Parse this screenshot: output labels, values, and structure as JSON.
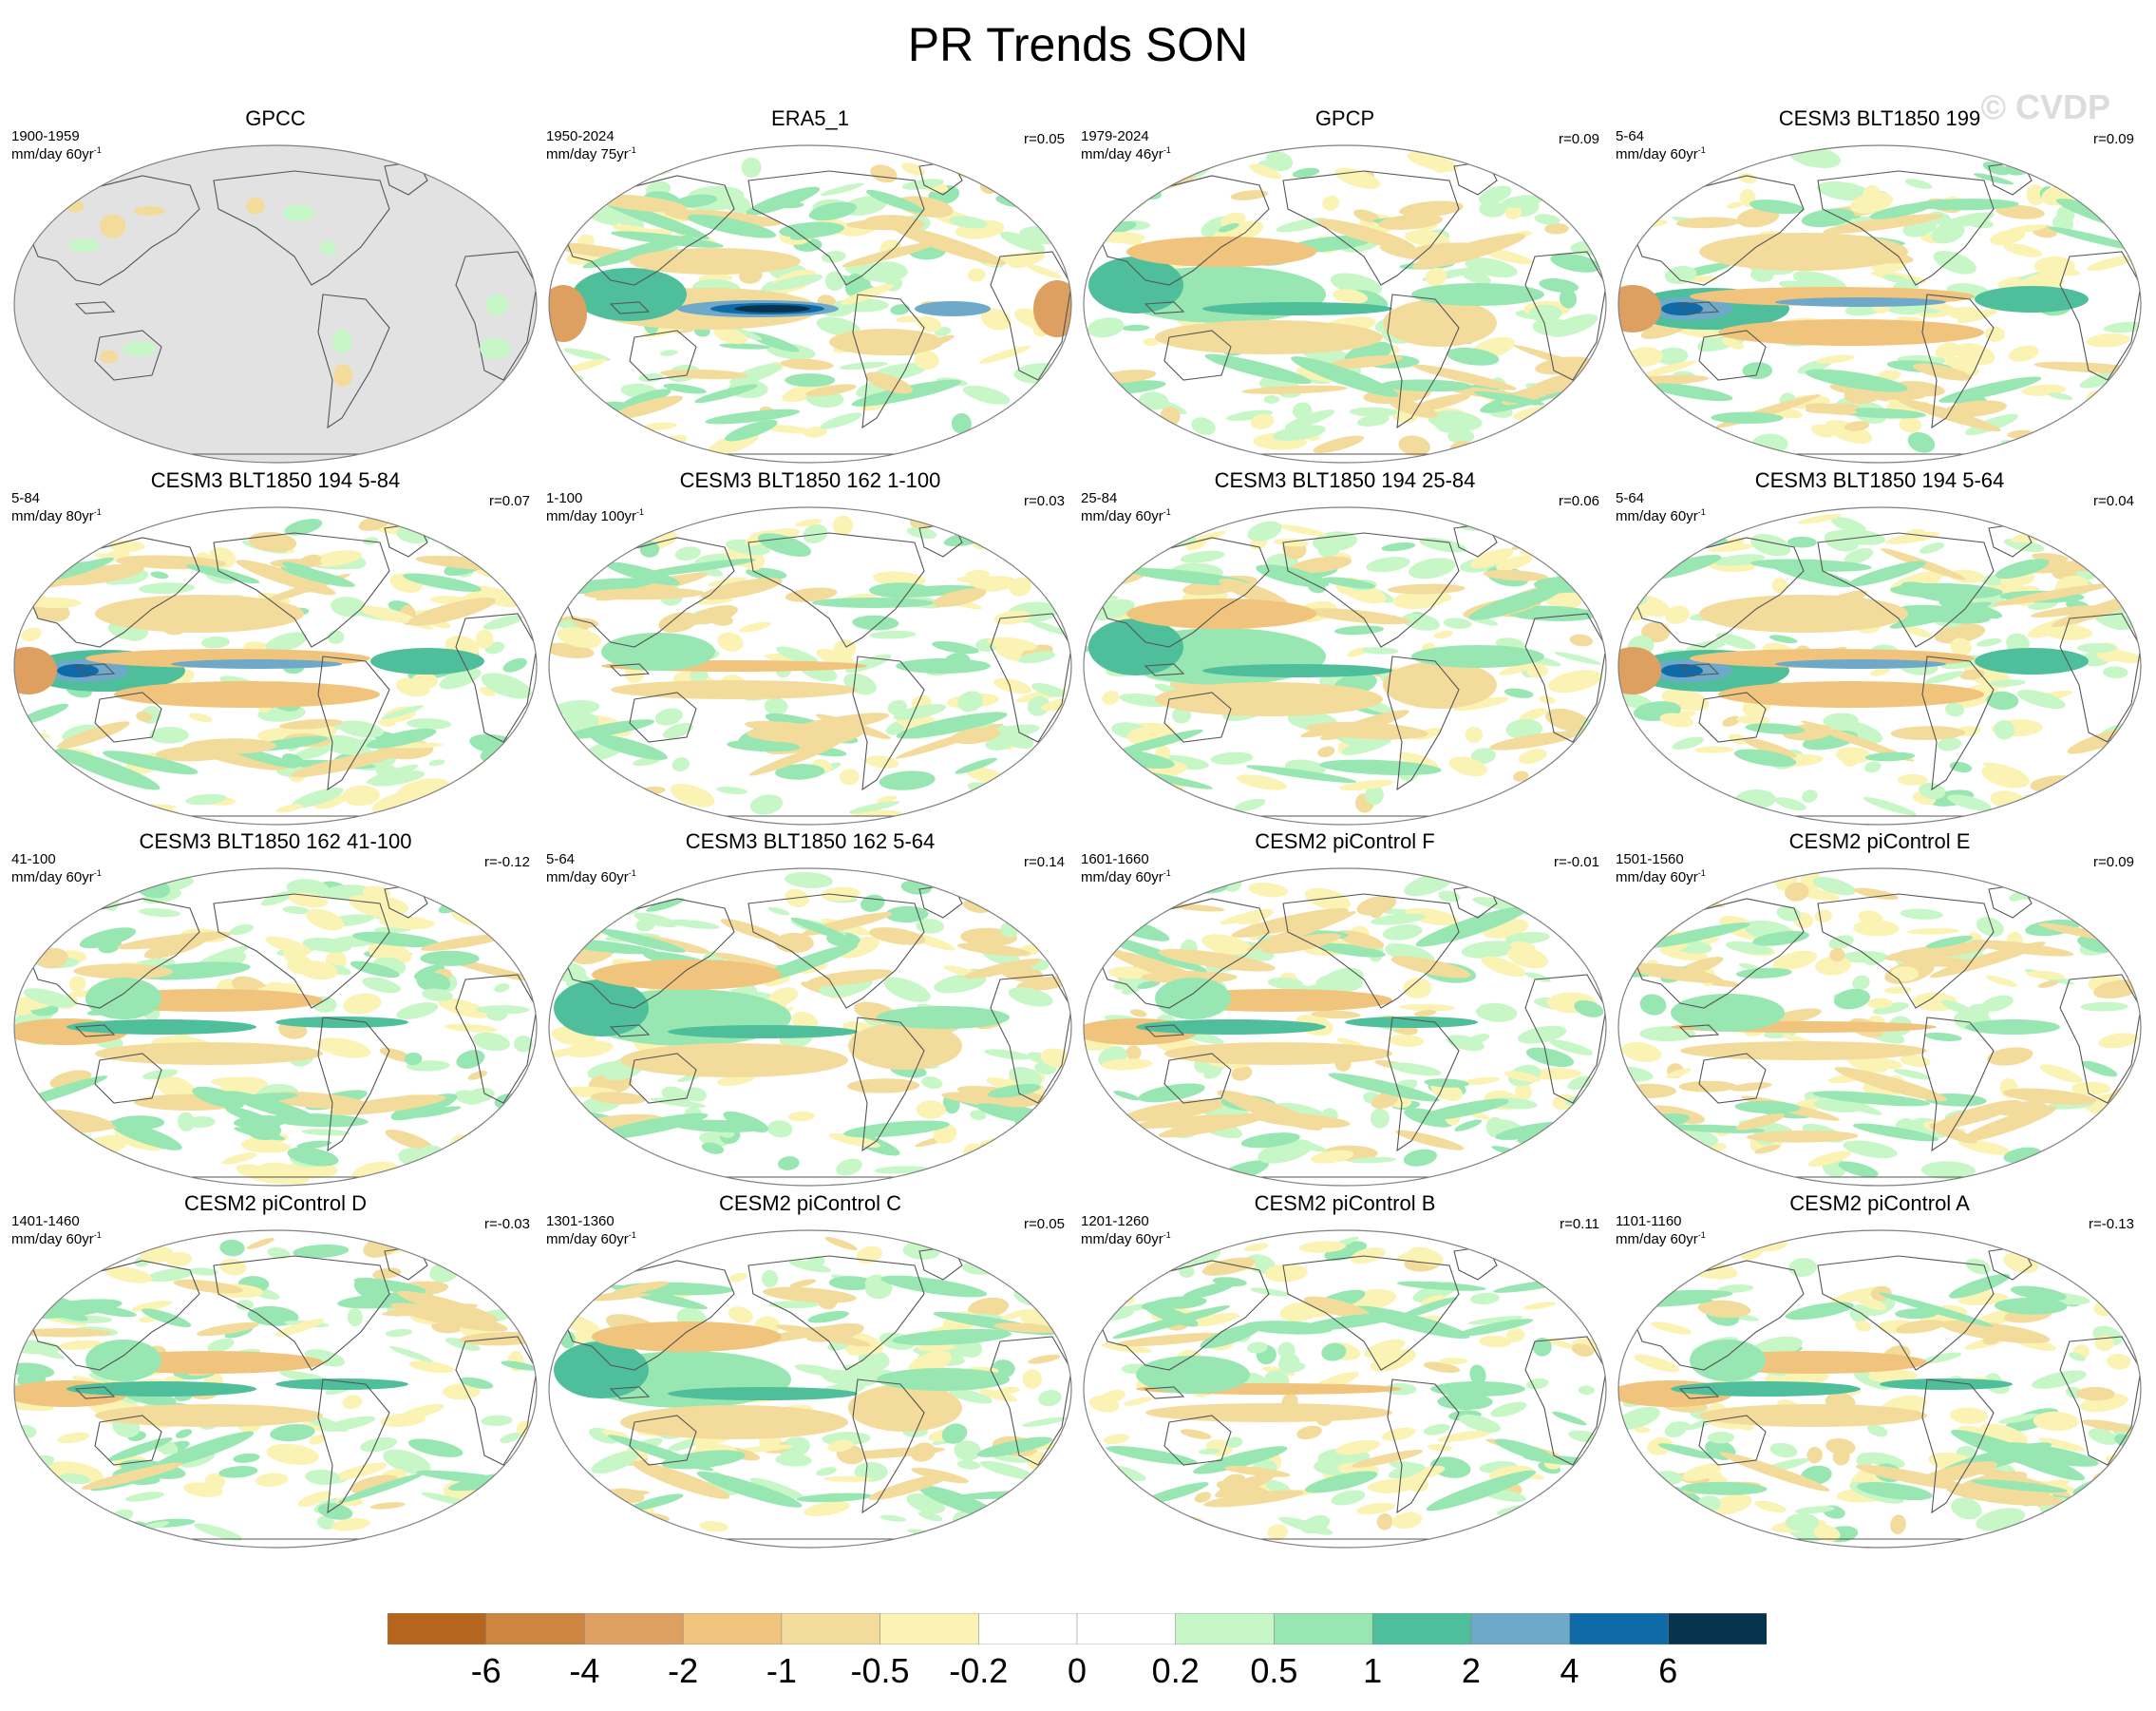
{
  "title": "PR Trends SON",
  "watermark": "© CVDP",
  "panels": [
    {
      "title": "GPCC",
      "years": "1900-1959",
      "units": "mm/day 60yr",
      "r": "",
      "variant": "obs-land"
    },
    {
      "title": "ERA5_1",
      "years": "1950-2024",
      "units": "mm/day 75yr",
      "r": "r=0.05",
      "variant": "strong-pacific"
    },
    {
      "title": "GPCP",
      "years": "1979-2024",
      "units": "mm/day 46yr",
      "r": "r=0.09",
      "variant": "wet-west"
    },
    {
      "title": "CESM3 BLT1850 199",
      "years": "5-64",
      "units": "mm/day 60yr",
      "r": "r=0.09",
      "variant": "wet-maritime"
    },
    {
      "title": "CESM3 BLT1850 194 5-84",
      "years": "5-84",
      "units": "mm/day 80yr",
      "r": "r=0.07",
      "variant": "wet-maritime"
    },
    {
      "title": "CESM3 BLT1850 162 1-100",
      "years": "1-100",
      "units": "mm/day 100yr",
      "r": "r=0.03",
      "variant": "weak"
    },
    {
      "title": "CESM3 BLT1850 194 25-84",
      "years": "25-84",
      "units": "mm/day 60yr",
      "r": "r=0.06",
      "variant": "wet-west"
    },
    {
      "title": "CESM3 BLT1850 194 5-64",
      "years": "5-64",
      "units": "mm/day 60yr",
      "r": "r=0.04",
      "variant": "wet-maritime"
    },
    {
      "title": "CESM3 BLT1850 162 41-100",
      "years": "41-100",
      "units": "mm/day 60yr",
      "r": "r=-0.12",
      "variant": "dry-west"
    },
    {
      "title": "CESM3 BLT1850 162 5-64",
      "years": "5-64",
      "units": "mm/day 60yr",
      "r": "r=0.14",
      "variant": "wet-west"
    },
    {
      "title": "CESM2 piControl F",
      "years": "1601-1660",
      "units": "mm/day 60yr",
      "r": "r=-0.01",
      "variant": "dry-west"
    },
    {
      "title": "CESM2 piControl E",
      "years": "1501-1560",
      "units": "mm/day 60yr",
      "r": "r=0.09",
      "variant": "weak"
    },
    {
      "title": "CESM2 piControl D",
      "years": "1401-1460",
      "units": "mm/day 60yr",
      "r": "r=-0.03",
      "variant": "dry-west"
    },
    {
      "title": "CESM2 piControl C",
      "years": "1301-1360",
      "units": "mm/day 60yr",
      "r": "r=0.05",
      "variant": "wet-west"
    },
    {
      "title": "CESM2 piControl B",
      "years": "1201-1260",
      "units": "mm/day 60yr",
      "r": "r=0.11",
      "variant": "weak"
    },
    {
      "title": "CESM2 piControl A",
      "years": "1101-1160",
      "units": "mm/day 60yr",
      "r": "r=-0.13",
      "variant": "dry-west"
    }
  ],
  "colorbar": {
    "colors": [
      "#b5651d",
      "#cd853f",
      "#dea060",
      "#f0c47d",
      "#f3dc9b",
      "#fbf3b4",
      "#ffffff",
      "#ffffff",
      "#c7f6c7",
      "#98e7b2",
      "#4fbf9b",
      "#6ea9c9",
      "#0f6aa8",
      "#06344f"
    ],
    "ticks": [
      "-6",
      "-4",
      "-2",
      "-1",
      "-0.5",
      "-0.2",
      "0",
      "0.2",
      "0.5",
      "1",
      "2",
      "4",
      "6"
    ]
  },
  "palette": {
    "land_outline": "#555555",
    "missing_ocean": "#e2e2e2",
    "map_border": "#808080"
  }
}
